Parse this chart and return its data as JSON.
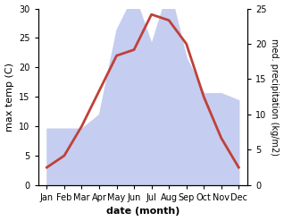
{
  "months": [
    "Jan",
    "Feb",
    "Mar",
    "Apr",
    "May",
    "Jun",
    "Jul",
    "Aug",
    "Sep",
    "Oct",
    "Nov",
    "Dec"
  ],
  "temperature": [
    3,
    5,
    10,
    16,
    22,
    23,
    29,
    28,
    24,
    15,
    8,
    3
  ],
  "precipitation": [
    8,
    8,
    8,
    10,
    22,
    27,
    20,
    28,
    18,
    13,
    13,
    12
  ],
  "temp_color": "#c0403a",
  "precip_fill_color": "#c5cef0",
  "temp_ylim": [
    0,
    30
  ],
  "precip_ylim": [
    0,
    25
  ],
  "xlabel": "date (month)",
  "ylabel_left": "max temp (C)",
  "ylabel_right": "med. precipitation (kg/m2)",
  "background_color": "#ffffff",
  "temp_yticks": [
    0,
    5,
    10,
    15,
    20,
    25,
    30
  ],
  "precip_yticks": [
    0,
    5,
    10,
    15,
    20,
    25
  ]
}
